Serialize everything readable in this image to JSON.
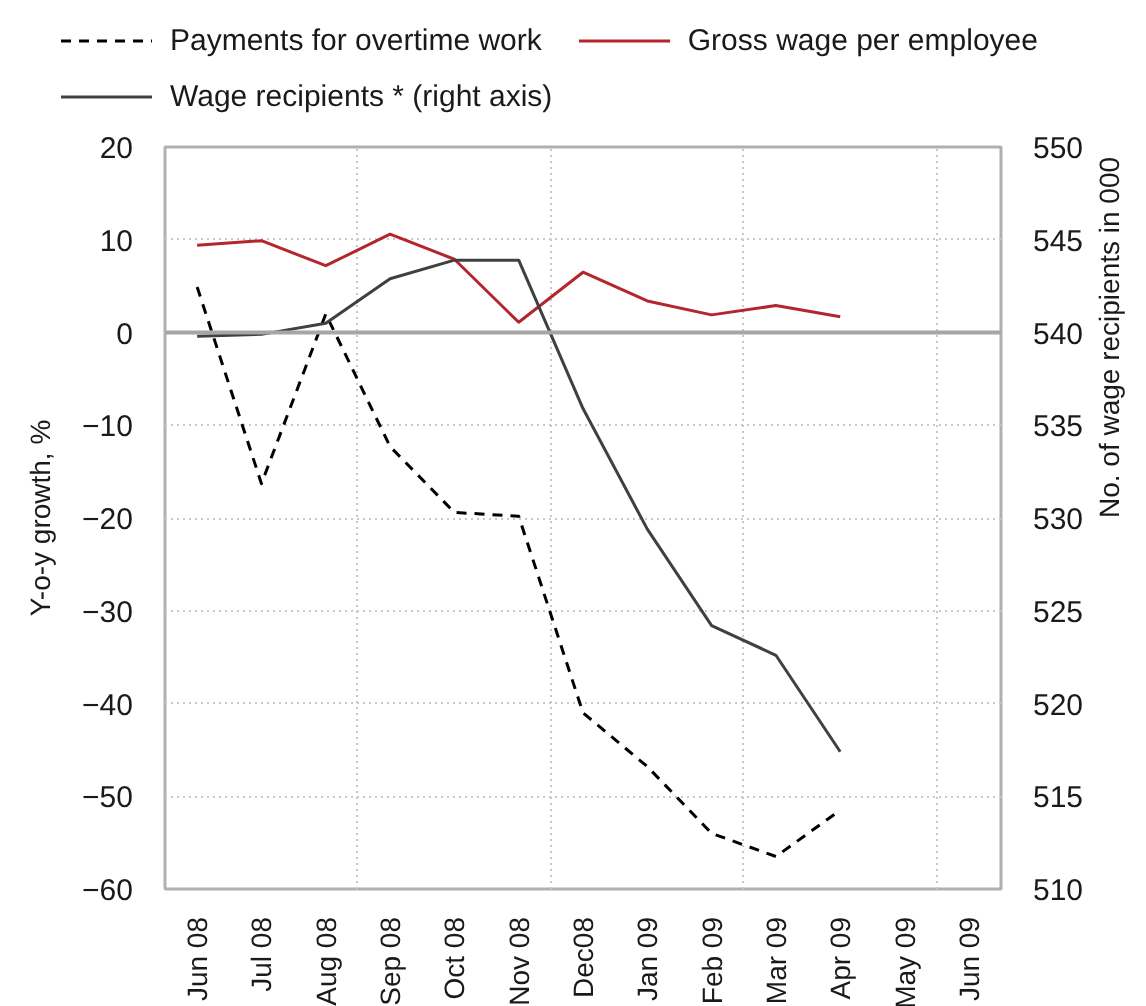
{
  "chart_data": {
    "type": "line",
    "categories": [
      "Jun 08",
      "Jul 08",
      "Aug 08",
      "Sep 08",
      "Oct 08",
      "Nov 08",
      "Dec08",
      "Jan 09",
      "Feb 09",
      "Mar 09",
      "Apr 09",
      "May 09",
      "Jun 09"
    ],
    "series": [
      {
        "name": "Payments for overtime work",
        "color": "#000000",
        "line_style": "dashed",
        "values": [
          4.9,
          -16.3,
          2.0,
          -12.3,
          -19.4,
          -19.8,
          -41.0,
          -46.8,
          -54.0,
          -56.5,
          -51.5,
          null,
          null
        ]
      },
      {
        "name": "Gross wage per employee",
        "color": "#b3262d",
        "line_style": "solid",
        "values": [
          9.4,
          9.9,
          7.2,
          10.6,
          7.9,
          1.1,
          6.5,
          3.4,
          1.9,
          2.9,
          1.7,
          null,
          null
        ]
      },
      {
        "name": "Wage recipients * (right axis)",
        "color": "#404040",
        "line_style": "solid",
        "axis": "y2",
        "values": [
          539.8,
          539.9,
          540.5,
          542.9,
          543.9,
          543.9,
          535.9,
          529.4,
          524.2,
          522.6,
          517.4,
          null,
          null
        ]
      }
    ],
    "ylabel": "Y-o-y growth, %",
    "y2label": "No. of wage recipients in 000",
    "ylim": [
      -60,
      20
    ],
    "yticks": [
      -60,
      -50,
      -40,
      -30,
      -20,
      -10,
      0,
      10,
      20
    ],
    "y2lim": [
      510,
      550
    ],
    "y2ticks": [
      510,
      515,
      520,
      525,
      530,
      535,
      540,
      545,
      550
    ],
    "ref_lines": [
      {
        "axis": "y",
        "value": 0,
        "color": "#a6a6a6"
      }
    ],
    "grid": true,
    "legend": "top"
  }
}
